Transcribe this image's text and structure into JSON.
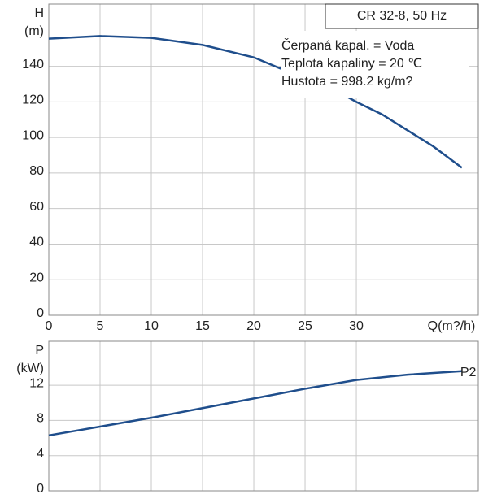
{
  "chart_data": [
    {
      "type": "line",
      "title": "CR 32-8, 50 Hz",
      "annotations": [
        "Čerpaná kapal. = Voda",
        "Teplota kapaliny = 20 ℃",
        "Hustota = 998.2 kg/m?"
      ],
      "ylabel": [
        "H",
        "(m)"
      ],
      "xlabel": "Q(m?/h)",
      "x": [
        0,
        5,
        10,
        15,
        20,
        22.5,
        25,
        27.5,
        30,
        32.5,
        35,
        37.5,
        40.3
      ],
      "series": [
        {
          "color": "#1f4e8c",
          "values": [
            155.5,
            157,
            156,
            152,
            145,
            139,
            134,
            128,
            120,
            113,
            104,
            95,
            83
          ]
        }
      ],
      "xlim": [
        0,
        41.9
      ],
      "xticks": [
        0,
        5,
        10,
        15,
        20,
        25,
        30
      ],
      "ylim": [
        0,
        175
      ],
      "yticks": [
        0,
        20,
        40,
        60,
        80,
        100,
        120,
        140
      ],
      "grid": true
    },
    {
      "type": "line",
      "ylabel": [
        "P",
        "(kW)"
      ],
      "x": [
        0,
        5,
        10,
        15,
        20,
        25,
        30,
        35,
        40.3
      ],
      "series": [
        {
          "name": "P2",
          "color": "#1f4e8c",
          "values": [
            6.3,
            7.3,
            8.3,
            9.4,
            10.5,
            11.6,
            12.6,
            13.2,
            13.6
          ]
        }
      ],
      "xlim": [
        0,
        41.9
      ],
      "xticks": [
        0,
        5,
        10,
        15,
        20,
        25,
        30
      ],
      "ylim": [
        0,
        17
      ],
      "yticks": [
        0,
        4,
        8,
        12
      ],
      "grid": true
    }
  ]
}
